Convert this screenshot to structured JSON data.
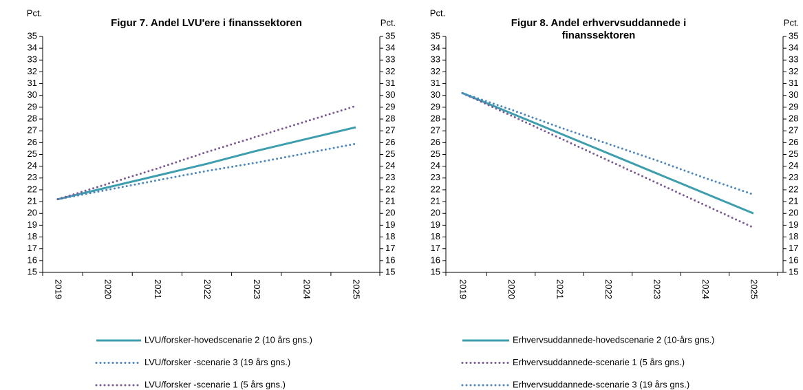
{
  "chart_data": [
    {
      "type": "line",
      "title": [
        "Figur 7. Andel LVU'ere i finanssektoren"
      ],
      "y_label": "Pct.",
      "y2_label": "Pct.",
      "categories": [
        "2019",
        "2020",
        "2021",
        "2022",
        "2023",
        "2024",
        "2025"
      ],
      "ylim": [
        15,
        35
      ],
      "yticks": [
        15,
        16,
        17,
        18,
        19,
        20,
        21,
        22,
        23,
        24,
        25,
        26,
        27,
        28,
        29,
        30,
        31,
        32,
        33,
        34,
        35
      ],
      "y2lim": [
        15,
        35
      ],
      "y2ticks": [
        15,
        16,
        17,
        18,
        19,
        20,
        21,
        22,
        23,
        24,
        25,
        26,
        27,
        28,
        29,
        30,
        31,
        32,
        33,
        34,
        35
      ],
      "series": [
        {
          "name": "LVU/forsker-hovedscenarie 2 (10 års gns.)",
          "color": "#3d9fae",
          "style": "solid",
          "values": [
            21.2,
            22.2,
            23.2,
            24.2,
            25.3,
            26.3,
            27.3
          ]
        },
        {
          "name": "LVU/forsker -scenarie 3 (19 års gns.)",
          "color": "#4a86c5",
          "style": "dotted",
          "values": [
            21.2,
            22.0,
            22.8,
            23.6,
            24.3,
            25.1,
            25.9
          ]
        },
        {
          "name": "LVU/forsker -scenarie 1 (5 års gns.)",
          "color": "#7a5a99",
          "style": "dotted",
          "values": [
            21.2,
            22.5,
            23.8,
            25.2,
            26.5,
            27.8,
            29.1
          ]
        }
      ]
    },
    {
      "type": "line",
      "title": [
        "Figur 8. Andel erhvervsuddannede i",
        "finanssektoren"
      ],
      "y_label": "Pct.",
      "y2_label": "Pct.",
      "categories": [
        "2019",
        "2020",
        "2021",
        "2022",
        "2023",
        "2024",
        "2025"
      ],
      "ylim": [
        15,
        35
      ],
      "yticks": [
        15,
        16,
        17,
        18,
        19,
        20,
        21,
        22,
        23,
        24,
        25,
        26,
        27,
        28,
        29,
        30,
        31,
        32,
        33,
        34,
        35
      ],
      "y2lim": [
        15,
        35
      ],
      "y2ticks": [
        15,
        16,
        17,
        18,
        19,
        20,
        21,
        22,
        23,
        24,
        25,
        26,
        27,
        28,
        29,
        30,
        31,
        32,
        33,
        34,
        35
      ],
      "series": [
        {
          "name": "Erhvervsuddannede-hovedscenarie 2 (10-års gns.)",
          "color": "#3d9fae",
          "style": "solid",
          "values": [
            30.2,
            28.5,
            26.8,
            25.1,
            23.4,
            21.7,
            20.0
          ]
        },
        {
          "name": "Erhvervsuddannede-scenarie 1 (5 års gns.)",
          "color": "#7a5a99",
          "style": "dotted",
          "values": [
            30.2,
            28.3,
            26.4,
            24.5,
            22.6,
            20.7,
            18.8
          ]
        },
        {
          "name": "Erhvervsuddannede-scenarie 3 (19 års gns.)",
          "color": "#4a86c5",
          "style": "dotted",
          "values": [
            30.2,
            28.8,
            27.3,
            25.9,
            24.5,
            23.0,
            21.6
          ]
        }
      ]
    }
  ]
}
